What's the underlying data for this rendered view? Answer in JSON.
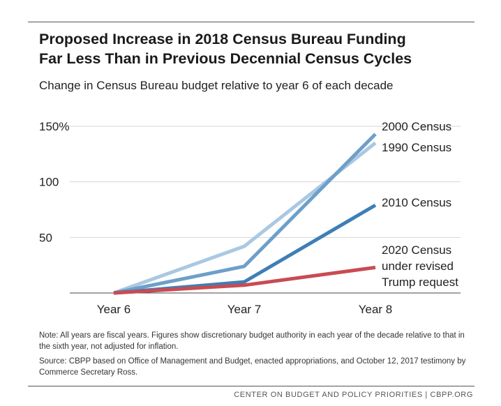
{
  "header": {
    "title_line1": "Proposed Increase in 2018 Census Bureau Funding",
    "title_line2": "Far Less Than in Previous Decennial Census Cycles",
    "subtitle": "Change in Census Bureau budget relative to year 6 of each decade"
  },
  "chart_data": {
    "type": "line",
    "x": [
      "Year 6",
      "Year 7",
      "Year 8"
    ],
    "ylim": [
      0,
      150
    ],
    "y_ticks": [
      {
        "value": 150,
        "label": "150%"
      },
      {
        "value": 100,
        "label": "100"
      },
      {
        "value": 50,
        "label": "50"
      }
    ],
    "grid": true,
    "series": [
      {
        "id": "s1990",
        "label_lines": [
          "1990 Census"
        ],
        "color": "#a9c8e3",
        "values": [
          0,
          42,
          135
        ]
      },
      {
        "id": "s2000",
        "label_lines": [
          "2000 Census"
        ],
        "color": "#6d9fc9",
        "values": [
          0,
          24,
          143
        ]
      },
      {
        "id": "s2010",
        "label_lines": [
          "2010 Census"
        ],
        "color": "#3e7fb5",
        "values": [
          0,
          10,
          79
        ]
      },
      {
        "id": "s2020",
        "label_lines": [
          "2020 Census",
          "under revised",
          "Trump request"
        ],
        "color": "#c94b53",
        "values": [
          0,
          7,
          23
        ]
      }
    ]
  },
  "notes": {
    "note": "Note: All years are fiscal years.  Figures show discretionary budget authority in each year of the decade relative to that in the sixth year, not adjusted for inflation.",
    "source": "Source: CBPP based on Office of Management and Budget, enacted appropriations, and October 12, 2017 testimony by Commerce Secretary Ross."
  },
  "footer": {
    "credit": "CENTER ON BUDGET AND POLICY PRIORITIES | CBPP.ORG"
  }
}
